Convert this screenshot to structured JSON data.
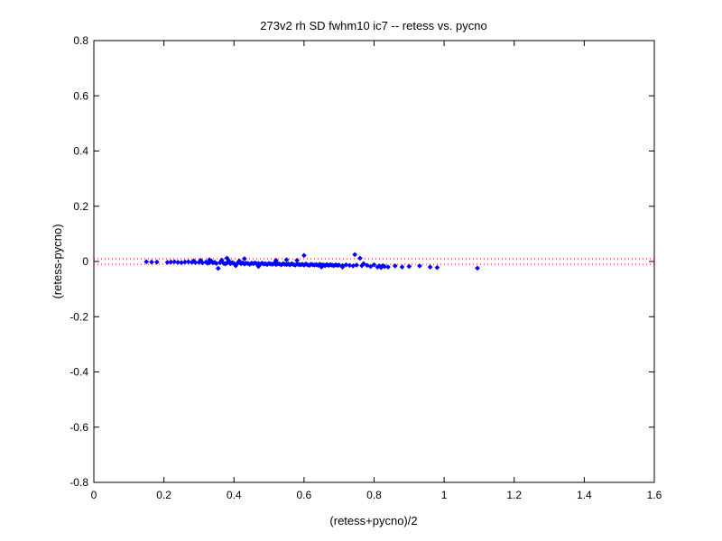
{
  "chart_data": {
    "type": "scatter",
    "title": "273v2 rh SD fwhm10 ic7 -- retess vs. pycno",
    "xlabel": "(retess+pycno)/2",
    "ylabel": "(retess-pycno)",
    "xlim": [
      0,
      1.6
    ],
    "ylim": [
      -0.8,
      0.8
    ],
    "xticks": [
      0,
      0.2,
      0.4,
      0.6,
      0.8,
      1,
      1.2,
      1.4,
      1.6
    ],
    "xtick_labels": [
      "0",
      "0.2",
      "0.4",
      "0.6",
      "0.8",
      "1",
      "1.2",
      "1.4",
      "1.6"
    ],
    "yticks": [
      -0.8,
      -0.6,
      -0.4,
      -0.2,
      0,
      0.2,
      0.4,
      0.6,
      0.8
    ],
    "ytick_labels": [
      "-0.8",
      "-0.6",
      "-0.4",
      "-0.2",
      "0",
      "0.2",
      "0.4",
      "0.6",
      "0.8"
    ],
    "grid": false,
    "reference_lines": [
      {
        "y": 0.01,
        "style": "dotted",
        "color": "#ff0000"
      },
      {
        "y": -0.01,
        "style": "dotted",
        "color": "#ff0000"
      }
    ],
    "marker_color": "#0000ff",
    "marker": "diamond",
    "series": [
      {
        "values": [
          [
            0.15,
            -0.001
          ],
          [
            0.165,
            -0.002
          ],
          [
            0.18,
            -0.002
          ],
          [
            0.21,
            -0.003
          ],
          [
            0.22,
            -0.002
          ],
          [
            0.23,
            -0.001
          ],
          [
            0.24,
            -0.003
          ],
          [
            0.25,
            -0.004
          ],
          [
            0.26,
            -0.002
          ],
          [
            0.27,
            -0.001
          ],
          [
            0.28,
            -0.003
          ],
          [
            0.285,
            0.002
          ],
          [
            0.29,
            -0.004
          ],
          [
            0.3,
            -0.003
          ],
          [
            0.305,
            0.004
          ],
          [
            0.31,
            -0.005
          ],
          [
            0.32,
            -0.002
          ],
          [
            0.325,
            -0.006
          ],
          [
            0.33,
            -0.004
          ],
          [
            0.335,
            0.002
          ],
          [
            0.34,
            -0.005
          ],
          [
            0.345,
            -0.003
          ],
          [
            0.35,
            -0.007
          ],
          [
            0.355,
            -0.025
          ],
          [
            0.36,
            -0.004
          ],
          [
            0.365,
            0.005
          ],
          [
            0.37,
            -0.006
          ],
          [
            0.375,
            -0.009
          ],
          [
            0.38,
            -0.005
          ],
          [
            0.385,
            0.003
          ],
          [
            0.39,
            -0.008
          ],
          [
            0.395,
            -0.004
          ],
          [
            0.4,
            -0.007
          ],
          [
            0.405,
            -0.015
          ],
          [
            0.41,
            -0.006
          ],
          [
            0.415,
            0.002
          ],
          [
            0.42,
            -0.008
          ],
          [
            0.425,
            -0.005
          ],
          [
            0.43,
            -0.009
          ],
          [
            0.435,
            -0.006
          ],
          [
            0.44,
            -0.007
          ],
          [
            0.445,
            -0.01
          ],
          [
            0.45,
            -0.006
          ],
          [
            0.455,
            -0.008
          ],
          [
            0.46,
            -0.005
          ],
          [
            0.465,
            -0.009
          ],
          [
            0.47,
            -0.007
          ],
          [
            0.475,
            -0.01
          ],
          [
            0.48,
            -0.006
          ],
          [
            0.485,
            -0.009
          ],
          [
            0.49,
            -0.008
          ],
          [
            0.495,
            -0.011
          ],
          [
            0.5,
            -0.007
          ],
          [
            0.505,
            -0.009
          ],
          [
            0.51,
            -0.01
          ],
          [
            0.515,
            -0.007
          ],
          [
            0.52,
            -0.011
          ],
          [
            0.525,
            -0.008
          ],
          [
            0.53,
            -0.009
          ],
          [
            0.535,
            -0.012
          ],
          [
            0.54,
            -0.008
          ],
          [
            0.545,
            -0.01
          ],
          [
            0.55,
            -0.011
          ],
          [
            0.555,
            -0.009
          ],
          [
            0.56,
            -0.012
          ],
          [
            0.565,
            -0.008
          ],
          [
            0.57,
            -0.011
          ],
          [
            0.575,
            -0.013
          ],
          [
            0.58,
            -0.009
          ],
          [
            0.585,
            -0.011
          ],
          [
            0.59,
            -0.012
          ],
          [
            0.595,
            -0.01
          ],
          [
            0.6,
            -0.013
          ],
          [
            0.605,
            -0.009
          ],
          [
            0.61,
            -0.012
          ],
          [
            0.615,
            -0.014
          ],
          [
            0.62,
            -0.01
          ],
          [
            0.625,
            -0.012
          ],
          [
            0.63,
            -0.013
          ],
          [
            0.635,
            -0.011
          ],
          [
            0.64,
            -0.014
          ],
          [
            0.645,
            -0.01
          ],
          [
            0.65,
            -0.013
          ],
          [
            0.655,
            -0.012
          ],
          [
            0.66,
            -0.015
          ],
          [
            0.665,
            -0.011
          ],
          [
            0.67,
            -0.014
          ],
          [
            0.675,
            -0.012
          ],
          [
            0.68,
            -0.013
          ],
          [
            0.685,
            -0.015
          ],
          [
            0.69,
            -0.012
          ],
          [
            0.695,
            -0.014
          ],
          [
            0.7,
            -0.013
          ],
          [
            0.71,
            -0.015
          ],
          [
            0.72,
            -0.012
          ],
          [
            0.73,
            -0.014
          ],
          [
            0.74,
            -0.016
          ],
          [
            0.745,
            0.025
          ],
          [
            0.75,
            -0.013
          ],
          [
            0.76,
            0.012
          ],
          [
            0.765,
            -0.015
          ],
          [
            0.77,
            -0.008
          ],
          [
            0.78,
            -0.014
          ],
          [
            0.79,
            -0.018
          ],
          [
            0.8,
            -0.012
          ],
          [
            0.81,
            -0.02
          ],
          [
            0.815,
            -0.016
          ],
          [
            0.82,
            -0.022
          ],
          [
            0.825,
            -0.015
          ],
          [
            0.83,
            -0.018
          ],
          [
            0.84,
            -0.02
          ],
          [
            0.86,
            -0.016
          ],
          [
            0.88,
            -0.02
          ],
          [
            0.9,
            -0.018
          ],
          [
            0.93,
            -0.016
          ],
          [
            0.96,
            -0.02
          ],
          [
            0.98,
            -0.022
          ],
          [
            1.095,
            -0.024
          ],
          [
            0.6,
            0.022
          ],
          [
            0.38,
            0.012
          ],
          [
            0.43,
            0.01
          ],
          [
            0.55,
            0.006
          ],
          [
            0.65,
            -0.02
          ],
          [
            0.47,
            -0.018
          ],
          [
            0.52,
            0.004
          ],
          [
            0.58,
            0.004
          ],
          [
            0.33,
            0.006
          ],
          [
            0.71,
            -0.02
          ]
        ]
      }
    ]
  }
}
